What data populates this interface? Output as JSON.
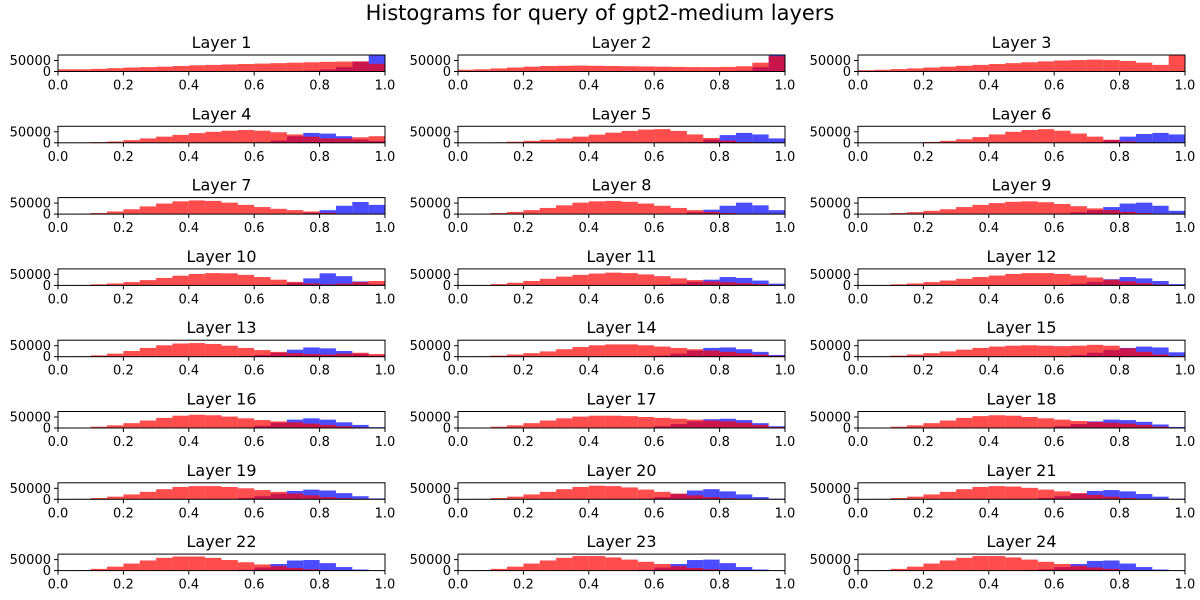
{
  "figure": {
    "title": "Histograms for query of gpt2-medium layers",
    "colors": {
      "blue": "#0000ff",
      "red": "#ff0000"
    },
    "opacity": 0.7
  },
  "chart_data": {
    "type": "bar",
    "bin_edges": [
      0.0,
      0.05,
      0.1,
      0.15,
      0.2,
      0.25,
      0.3,
      0.35,
      0.4,
      0.45,
      0.5,
      0.55,
      0.6,
      0.65,
      0.7,
      0.75,
      0.8,
      0.85,
      0.9,
      0.95,
      1.0
    ],
    "xlim": [
      0.0,
      1.0
    ],
    "xticks": [
      "0.0",
      "0.2",
      "0.4",
      "0.6",
      "0.8",
      "1.0"
    ],
    "yticks": [
      "0",
      "50000"
    ],
    "ylim": [
      0,
      75000
    ],
    "series_colors": [
      "#0000ff",
      "#ff0000"
    ],
    "panels": [
      {
        "title": "Layer 1",
        "blue": [
          0,
          0,
          0,
          0,
          0,
          0,
          0,
          0,
          0,
          0,
          0,
          0,
          0,
          0,
          1000,
          4000,
          9000,
          20000,
          45000,
          75000
        ],
        "red": [
          10000,
          10000,
          12000,
          15000,
          18000,
          20000,
          22000,
          25000,
          28000,
          30000,
          32000,
          34000,
          36000,
          38000,
          40000,
          42000,
          44000,
          45000,
          46000,
          35000
        ]
      },
      {
        "title": "Layer 2",
        "blue": [
          0,
          0,
          0,
          0,
          0,
          0,
          0,
          0,
          0,
          0,
          0,
          0,
          0,
          0,
          0,
          0,
          1000,
          4000,
          20000,
          75000
        ],
        "red": [
          8000,
          10000,
          14000,
          18000,
          22000,
          25000,
          26000,
          27000,
          26000,
          25000,
          24000,
          23000,
          22000,
          21000,
          20000,
          20000,
          21000,
          24000,
          40000,
          70000
        ]
      },
      {
        "title": "Layer 3",
        "blue": [
          0,
          0,
          0,
          0,
          0,
          0,
          0,
          0,
          0,
          0,
          0,
          0,
          0,
          0,
          0,
          0,
          0,
          0,
          0,
          0
        ],
        "red": [
          6000,
          8000,
          11000,
          14000,
          18000,
          22000,
          26000,
          30000,
          34000,
          38000,
          42000,
          46000,
          50000,
          52000,
          54000,
          52000,
          48000,
          40000,
          30000,
          75000
        ]
      },
      {
        "title": "Layer 4",
        "blue": [
          0,
          0,
          0,
          0,
          0,
          0,
          0,
          0,
          0,
          0,
          0,
          0,
          2000,
          10000,
          30000,
          45000,
          42000,
          30000,
          15000,
          8000
        ],
        "red": [
          0,
          0,
          3000,
          6000,
          12000,
          20000,
          28000,
          36000,
          44000,
          50000,
          55000,
          58000,
          55000,
          48000,
          38000,
          28000,
          20000,
          20000,
          25000,
          30000
        ]
      },
      {
        "title": "Layer 5",
        "blue": [
          0,
          0,
          0,
          0,
          0,
          0,
          0,
          0,
          0,
          0,
          0,
          0,
          0,
          0,
          3000,
          15000,
          35000,
          45000,
          38000,
          20000
        ],
        "red": [
          0,
          0,
          2000,
          5000,
          9000,
          14000,
          20000,
          28000,
          37000,
          46000,
          54000,
          60000,
          62000,
          54000,
          38000,
          22000,
          10000,
          4000,
          1000,
          0
        ]
      },
      {
        "title": "Layer 6",
        "blue": [
          0,
          0,
          0,
          0,
          0,
          0,
          0,
          0,
          0,
          0,
          0,
          0,
          0,
          0,
          4000,
          12000,
          28000,
          40000,
          45000,
          38000
        ],
        "red": [
          0,
          0,
          0,
          1000,
          4000,
          9000,
          16000,
          26000,
          38000,
          50000,
          58000,
          62000,
          55000,
          42000,
          28000,
          14000,
          6000,
          2000,
          0,
          0
        ]
      },
      {
        "title": "Layer 7",
        "blue": [
          0,
          0,
          0,
          0,
          0,
          0,
          0,
          0,
          0,
          0,
          0,
          0,
          0,
          0,
          0,
          6000,
          18000,
          38000,
          55000,
          42000
        ],
        "red": [
          0,
          2000,
          5000,
          12000,
          22000,
          35000,
          48000,
          58000,
          62000,
          60000,
          52000,
          42000,
          32000,
          24000,
          18000,
          12000,
          6000,
          2000,
          0,
          0
        ]
      },
      {
        "title": "Layer 8",
        "blue": [
          0,
          0,
          0,
          0,
          0,
          0,
          0,
          0,
          0,
          0,
          0,
          0,
          0,
          2000,
          8000,
          20000,
          38000,
          52000,
          40000,
          18000
        ],
        "red": [
          0,
          2000,
          5000,
          10000,
          18000,
          28000,
          40000,
          52000,
          58000,
          60000,
          56000,
          48000,
          38000,
          28000,
          18000,
          10000,
          5000,
          2000,
          0,
          0
        ]
      },
      {
        "title": "Layer 9",
        "blue": [
          0,
          0,
          0,
          0,
          0,
          0,
          0,
          0,
          0,
          0,
          0,
          0,
          2000,
          8000,
          18000,
          32000,
          48000,
          52000,
          38000,
          15000
        ],
        "red": [
          0,
          2000,
          5000,
          9000,
          15000,
          22000,
          32000,
          42000,
          50000,
          56000,
          58000,
          54000,
          46000,
          36000,
          26000,
          18000,
          10000,
          5000,
          2000,
          0
        ]
      },
      {
        "title": "Layer 10",
        "blue": [
          0,
          0,
          0,
          0,
          0,
          0,
          0,
          0,
          0,
          0,
          0,
          0,
          0,
          3000,
          12000,
          32000,
          55000,
          42000,
          18000,
          5000
        ],
        "red": [
          0,
          2000,
          5000,
          9000,
          15000,
          24000,
          34000,
          44000,
          52000,
          56000,
          55000,
          48000,
          38000,
          26000,
          16000,
          9000,
          5000,
          8000,
          15000,
          20000
        ]
      },
      {
        "title": "Layer 11",
        "blue": [
          0,
          0,
          0,
          0,
          0,
          0,
          0,
          0,
          0,
          0,
          0,
          0,
          3000,
          8000,
          16000,
          26000,
          38000,
          34000,
          22000,
          8000
        ],
        "red": [
          0,
          2000,
          6000,
          12000,
          20000,
          30000,
          40000,
          48000,
          54000,
          58000,
          56000,
          50000,
          42000,
          32000,
          24000,
          18000,
          14000,
          10000,
          6000,
          2000
        ]
      },
      {
        "title": "Layer 12",
        "blue": [
          0,
          0,
          0,
          0,
          0,
          0,
          0,
          0,
          0,
          0,
          0,
          0,
          2000,
          8000,
          16000,
          28000,
          38000,
          32000,
          20000,
          6000
        ],
        "red": [
          0,
          2000,
          5000,
          9000,
          15000,
          22000,
          30000,
          38000,
          45000,
          52000,
          56000,
          56000,
          52000,
          45000,
          36000,
          26000,
          18000,
          10000,
          4000,
          1000
        ]
      },
      {
        "title": "Layer 13",
        "blue": [
          0,
          0,
          0,
          0,
          0,
          0,
          0,
          0,
          0,
          0,
          0,
          2000,
          8000,
          18000,
          32000,
          42000,
          38000,
          26000,
          14000,
          5000
        ],
        "red": [
          0,
          2000,
          6000,
          14000,
          26000,
          40000,
          52000,
          60000,
          62000,
          58000,
          50000,
          40000,
          30000,
          22000,
          16000,
          12000,
          10000,
          14000,
          18000,
          12000
        ]
      },
      {
        "title": "Layer 14",
        "blue": [
          0,
          0,
          0,
          0,
          0,
          0,
          0,
          0,
          0,
          0,
          0,
          0,
          5000,
          14000,
          28000,
          40000,
          42000,
          34000,
          22000,
          8000
        ],
        "red": [
          0,
          2000,
          5000,
          10000,
          16000,
          24000,
          34000,
          44000,
          52000,
          56000,
          56000,
          52000,
          46000,
          40000,
          34000,
          28000,
          22000,
          16000,
          10000,
          4000
        ]
      },
      {
        "title": "Layer 15",
        "blue": [
          0,
          0,
          0,
          0,
          0,
          0,
          0,
          0,
          0,
          0,
          0,
          0,
          2000,
          8000,
          18000,
          30000,
          40000,
          46000,
          42000,
          20000
        ],
        "red": [
          0,
          2000,
          5000,
          10000,
          16000,
          24000,
          32000,
          40000,
          46000,
          50000,
          52000,
          50000,
          48000,
          50000,
          54000,
          50000,
          38000,
          22000,
          10000,
          3000
        ]
      },
      {
        "title": "Layer 16",
        "blue": [
          0,
          0,
          0,
          0,
          0,
          0,
          0,
          0,
          0,
          0,
          0,
          3000,
          10000,
          24000,
          38000,
          44000,
          38000,
          26000,
          14000,
          4000
        ],
        "red": [
          0,
          2000,
          6000,
          12000,
          22000,
          34000,
          46000,
          56000,
          60000,
          58000,
          52000,
          44000,
          36000,
          30000,
          26000,
          20000,
          14000,
          8000,
          3000,
          1000
        ]
      },
      {
        "title": "Layer 17",
        "blue": [
          0,
          0,
          0,
          0,
          0,
          0,
          0,
          0,
          0,
          0,
          0,
          2000,
          8000,
          18000,
          30000,
          40000,
          42000,
          36000,
          22000,
          8000
        ],
        "red": [
          0,
          2000,
          6000,
          12000,
          22000,
          34000,
          44000,
          52000,
          56000,
          56000,
          54000,
          50000,
          46000,
          42000,
          38000,
          34000,
          30000,
          24000,
          14000,
          4000
        ]
      },
      {
        "title": "Layer 18",
        "blue": [
          0,
          0,
          0,
          0,
          0,
          0,
          0,
          0,
          0,
          0,
          0,
          2000,
          8000,
          18000,
          30000,
          38000,
          36000,
          28000,
          16000,
          5000
        ],
        "red": [
          0,
          2000,
          6000,
          12000,
          22000,
          34000,
          46000,
          54000,
          58000,
          56000,
          50000,
          44000,
          38000,
          32000,
          28000,
          24000,
          20000,
          14000,
          6000,
          2000
        ]
      },
      {
        "title": "Layer 19",
        "blue": [
          0,
          0,
          0,
          0,
          0,
          0,
          0,
          0,
          0,
          0,
          2000,
          6000,
          14000,
          26000,
          38000,
          44000,
          40000,
          28000,
          14000,
          4000
        ],
        "red": [
          0,
          2000,
          6000,
          12000,
          22000,
          34000,
          46000,
          56000,
          60000,
          60000,
          56000,
          50000,
          42000,
          34000,
          26000,
          18000,
          10000,
          5000,
          2000,
          0
        ]
      },
      {
        "title": "Layer 20",
        "blue": [
          0,
          0,
          0,
          0,
          0,
          0,
          0,
          0,
          0,
          0,
          0,
          3000,
          10000,
          24000,
          40000,
          46000,
          36000,
          22000,
          10000,
          3000
        ],
        "red": [
          0,
          2000,
          6000,
          12000,
          22000,
          34000,
          46000,
          56000,
          62000,
          60000,
          54000,
          44000,
          34000,
          26000,
          18000,
          10000,
          5000,
          2000,
          0,
          0
        ]
      },
      {
        "title": "Layer 21",
        "blue": [
          0,
          0,
          0,
          0,
          0,
          0,
          0,
          0,
          0,
          0,
          2000,
          6000,
          14000,
          26000,
          38000,
          42000,
          36000,
          24000,
          12000,
          3000
        ],
        "red": [
          0,
          2000,
          6000,
          12000,
          22000,
          34000,
          46000,
          56000,
          60000,
          58000,
          52000,
          44000,
          36000,
          28000,
          20000,
          12000,
          6000,
          2000,
          0,
          0
        ]
      },
      {
        "title": "Layer 22",
        "blue": [
          0,
          0,
          0,
          0,
          0,
          0,
          0,
          0,
          0,
          0,
          0,
          4000,
          14000,
          30000,
          46000,
          48000,
          34000,
          16000,
          5000,
          0
        ],
        "red": [
          0,
          2000,
          8000,
          18000,
          32000,
          46000,
          58000,
          64000,
          64000,
          58000,
          48000,
          38000,
          28000,
          20000,
          12000,
          6000,
          2000,
          0,
          0,
          0
        ]
      },
      {
        "title": "Layer 23",
        "blue": [
          0,
          0,
          0,
          0,
          0,
          0,
          0,
          0,
          0,
          0,
          0,
          4000,
          14000,
          30000,
          48000,
          50000,
          34000,
          16000,
          5000,
          0
        ],
        "red": [
          0,
          2000,
          8000,
          18000,
          32000,
          46000,
          58000,
          66000,
          66000,
          60000,
          50000,
          40000,
          30000,
          20000,
          12000,
          6000,
          2000,
          0,
          0,
          0
        ]
      },
      {
        "title": "Layer 24",
        "blue": [
          0,
          0,
          0,
          0,
          0,
          0,
          0,
          0,
          0,
          0,
          2000,
          6000,
          16000,
          30000,
          44000,
          46000,
          32000,
          16000,
          5000,
          0
        ],
        "red": [
          0,
          2000,
          8000,
          18000,
          32000,
          46000,
          58000,
          66000,
          66000,
          60000,
          50000,
          40000,
          30000,
          22000,
          14000,
          8000,
          3000,
          0,
          0,
          0
        ]
      }
    ]
  }
}
